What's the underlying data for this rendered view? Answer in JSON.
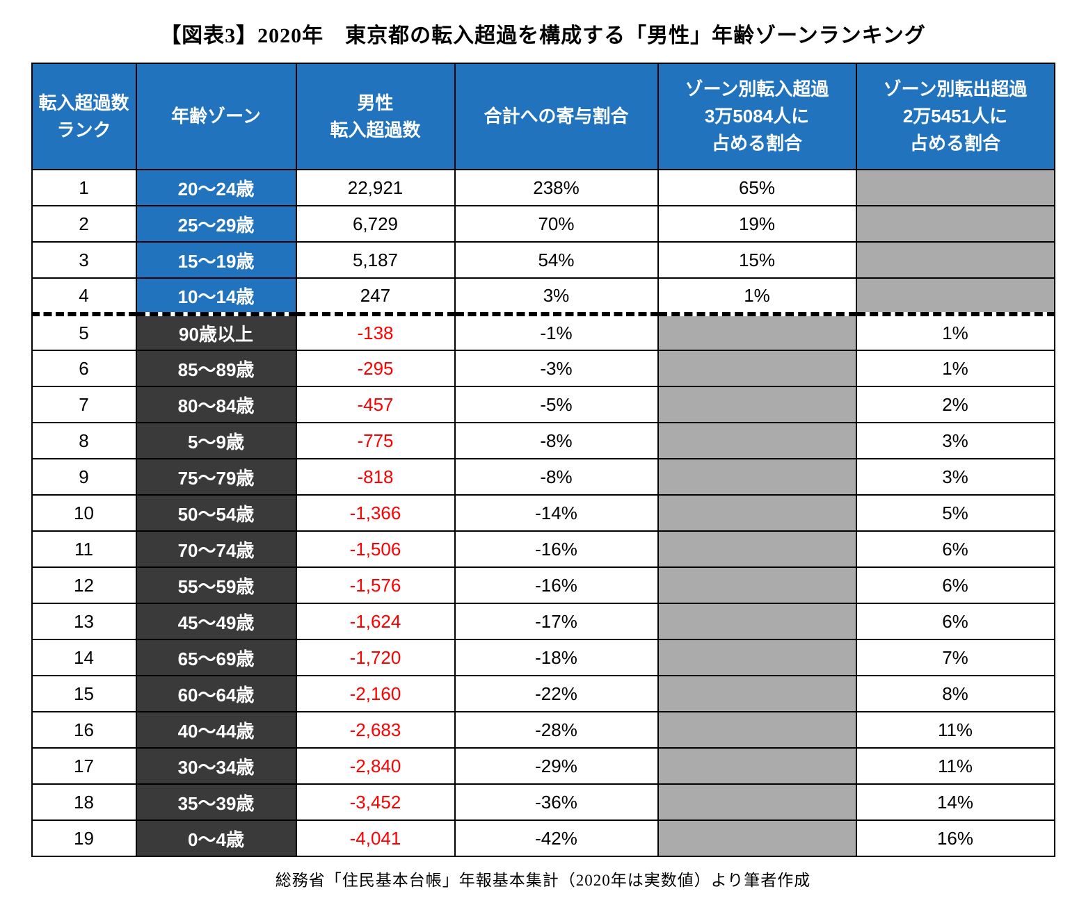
{
  "title": "【図表3】2020年　東京都の転入超過を構成する「男性」年齢ゾーンランキング",
  "source_note": "総務省「住民基本台帳」年報基本集計（2020年は実数値）より筆者作成",
  "colors": {
    "header_bg": "#2173BE",
    "zone_inflow_bg": "#2173BE",
    "zone_outflow_bg": "#3A3A3A",
    "gray_cell_bg": "#ABABAB",
    "negative_text": "#FF0000",
    "border": "#000000"
  },
  "chart_data": {
    "type": "table",
    "title": "【図表3】2020年　東京都の転入超過を構成する「男性」年齢ゾーンランキング",
    "columns": [
      "転入超過数\nランク",
      "年齢ゾーン",
      "男性\n転入超過数",
      "合計への寄与割合",
      "ゾーン別転入超過\n3万5084人に\n占める割合",
      "ゾーン別転出超過\n2万5451人に\n占める割合"
    ],
    "totals": {
      "net_inflow_total": "3万5084人",
      "net_outflow_total": "2万5451人"
    },
    "rows": [
      {
        "rank": "1",
        "age_zone": "20〜24歳",
        "male_net_inflow": "22,921",
        "contribution_to_total": "238%",
        "share_of_net_inflow": "65%",
        "share_of_net_outflow": "",
        "group": "inflow",
        "divider_above": false
      },
      {
        "rank": "2",
        "age_zone": "25〜29歳",
        "male_net_inflow": "6,729",
        "contribution_to_total": "70%",
        "share_of_net_inflow": "19%",
        "share_of_net_outflow": "",
        "group": "inflow",
        "divider_above": false
      },
      {
        "rank": "3",
        "age_zone": "15〜19歳",
        "male_net_inflow": "5,187",
        "contribution_to_total": "54%",
        "share_of_net_inflow": "15%",
        "share_of_net_outflow": "",
        "group": "inflow",
        "divider_above": false
      },
      {
        "rank": "4",
        "age_zone": "10〜14歳",
        "male_net_inflow": "247",
        "contribution_to_total": "3%",
        "share_of_net_inflow": "1%",
        "share_of_net_outflow": "",
        "group": "inflow",
        "divider_above": false
      },
      {
        "rank": "5",
        "age_zone": "90歳以上",
        "male_net_inflow": "-138",
        "contribution_to_total": "-1%",
        "share_of_net_inflow": "",
        "share_of_net_outflow": "1%",
        "group": "outflow",
        "divider_above": true
      },
      {
        "rank": "6",
        "age_zone": "85〜89歳",
        "male_net_inflow": "-295",
        "contribution_to_total": "-3%",
        "share_of_net_inflow": "",
        "share_of_net_outflow": "1%",
        "group": "outflow",
        "divider_above": false
      },
      {
        "rank": "7",
        "age_zone": "80〜84歳",
        "male_net_inflow": "-457",
        "contribution_to_total": "-5%",
        "share_of_net_inflow": "",
        "share_of_net_outflow": "2%",
        "group": "outflow",
        "divider_above": false
      },
      {
        "rank": "8",
        "age_zone": "5〜9歳",
        "male_net_inflow": "-775",
        "contribution_to_total": "-8%",
        "share_of_net_inflow": "",
        "share_of_net_outflow": "3%",
        "group": "outflow",
        "divider_above": false
      },
      {
        "rank": "9",
        "age_zone": "75〜79歳",
        "male_net_inflow": "-818",
        "contribution_to_total": "-8%",
        "share_of_net_inflow": "",
        "share_of_net_outflow": "3%",
        "group": "outflow",
        "divider_above": false
      },
      {
        "rank": "10",
        "age_zone": "50〜54歳",
        "male_net_inflow": "-1,366",
        "contribution_to_total": "-14%",
        "share_of_net_inflow": "",
        "share_of_net_outflow": "5%",
        "group": "outflow",
        "divider_above": false
      },
      {
        "rank": "11",
        "age_zone": "70〜74歳",
        "male_net_inflow": "-1,506",
        "contribution_to_total": "-16%",
        "share_of_net_inflow": "",
        "share_of_net_outflow": "6%",
        "group": "outflow",
        "divider_above": false
      },
      {
        "rank": "12",
        "age_zone": "55〜59歳",
        "male_net_inflow": "-1,576",
        "contribution_to_total": "-16%",
        "share_of_net_inflow": "",
        "share_of_net_outflow": "6%",
        "group": "outflow",
        "divider_above": false
      },
      {
        "rank": "13",
        "age_zone": "45〜49歳",
        "male_net_inflow": "-1,624",
        "contribution_to_total": "-17%",
        "share_of_net_inflow": "",
        "share_of_net_outflow": "6%",
        "group": "outflow",
        "divider_above": false
      },
      {
        "rank": "14",
        "age_zone": "65〜69歳",
        "male_net_inflow": "-1,720",
        "contribution_to_total": "-18%",
        "share_of_net_inflow": "",
        "share_of_net_outflow": "7%",
        "group": "outflow",
        "divider_above": false
      },
      {
        "rank": "15",
        "age_zone": "60〜64歳",
        "male_net_inflow": "-2,160",
        "contribution_to_total": "-22%",
        "share_of_net_inflow": "",
        "share_of_net_outflow": "8%",
        "group": "outflow",
        "divider_above": false
      },
      {
        "rank": "16",
        "age_zone": "40〜44歳",
        "male_net_inflow": "-2,683",
        "contribution_to_total": "-28%",
        "share_of_net_inflow": "",
        "share_of_net_outflow": "11%",
        "group": "outflow",
        "divider_above": false
      },
      {
        "rank": "17",
        "age_zone": "30〜34歳",
        "male_net_inflow": "-2,840",
        "contribution_to_total": "-29%",
        "share_of_net_inflow": "",
        "share_of_net_outflow": "11%",
        "group": "outflow",
        "divider_above": false
      },
      {
        "rank": "18",
        "age_zone": "35〜39歳",
        "male_net_inflow": "-3,452",
        "contribution_to_total": "-36%",
        "share_of_net_inflow": "",
        "share_of_net_outflow": "14%",
        "group": "outflow",
        "divider_above": false
      },
      {
        "rank": "19",
        "age_zone": "0〜4歳",
        "male_net_inflow": "-4,041",
        "contribution_to_total": "-42%",
        "share_of_net_inflow": "",
        "share_of_net_outflow": "16%",
        "group": "outflow",
        "divider_above": false
      }
    ]
  }
}
